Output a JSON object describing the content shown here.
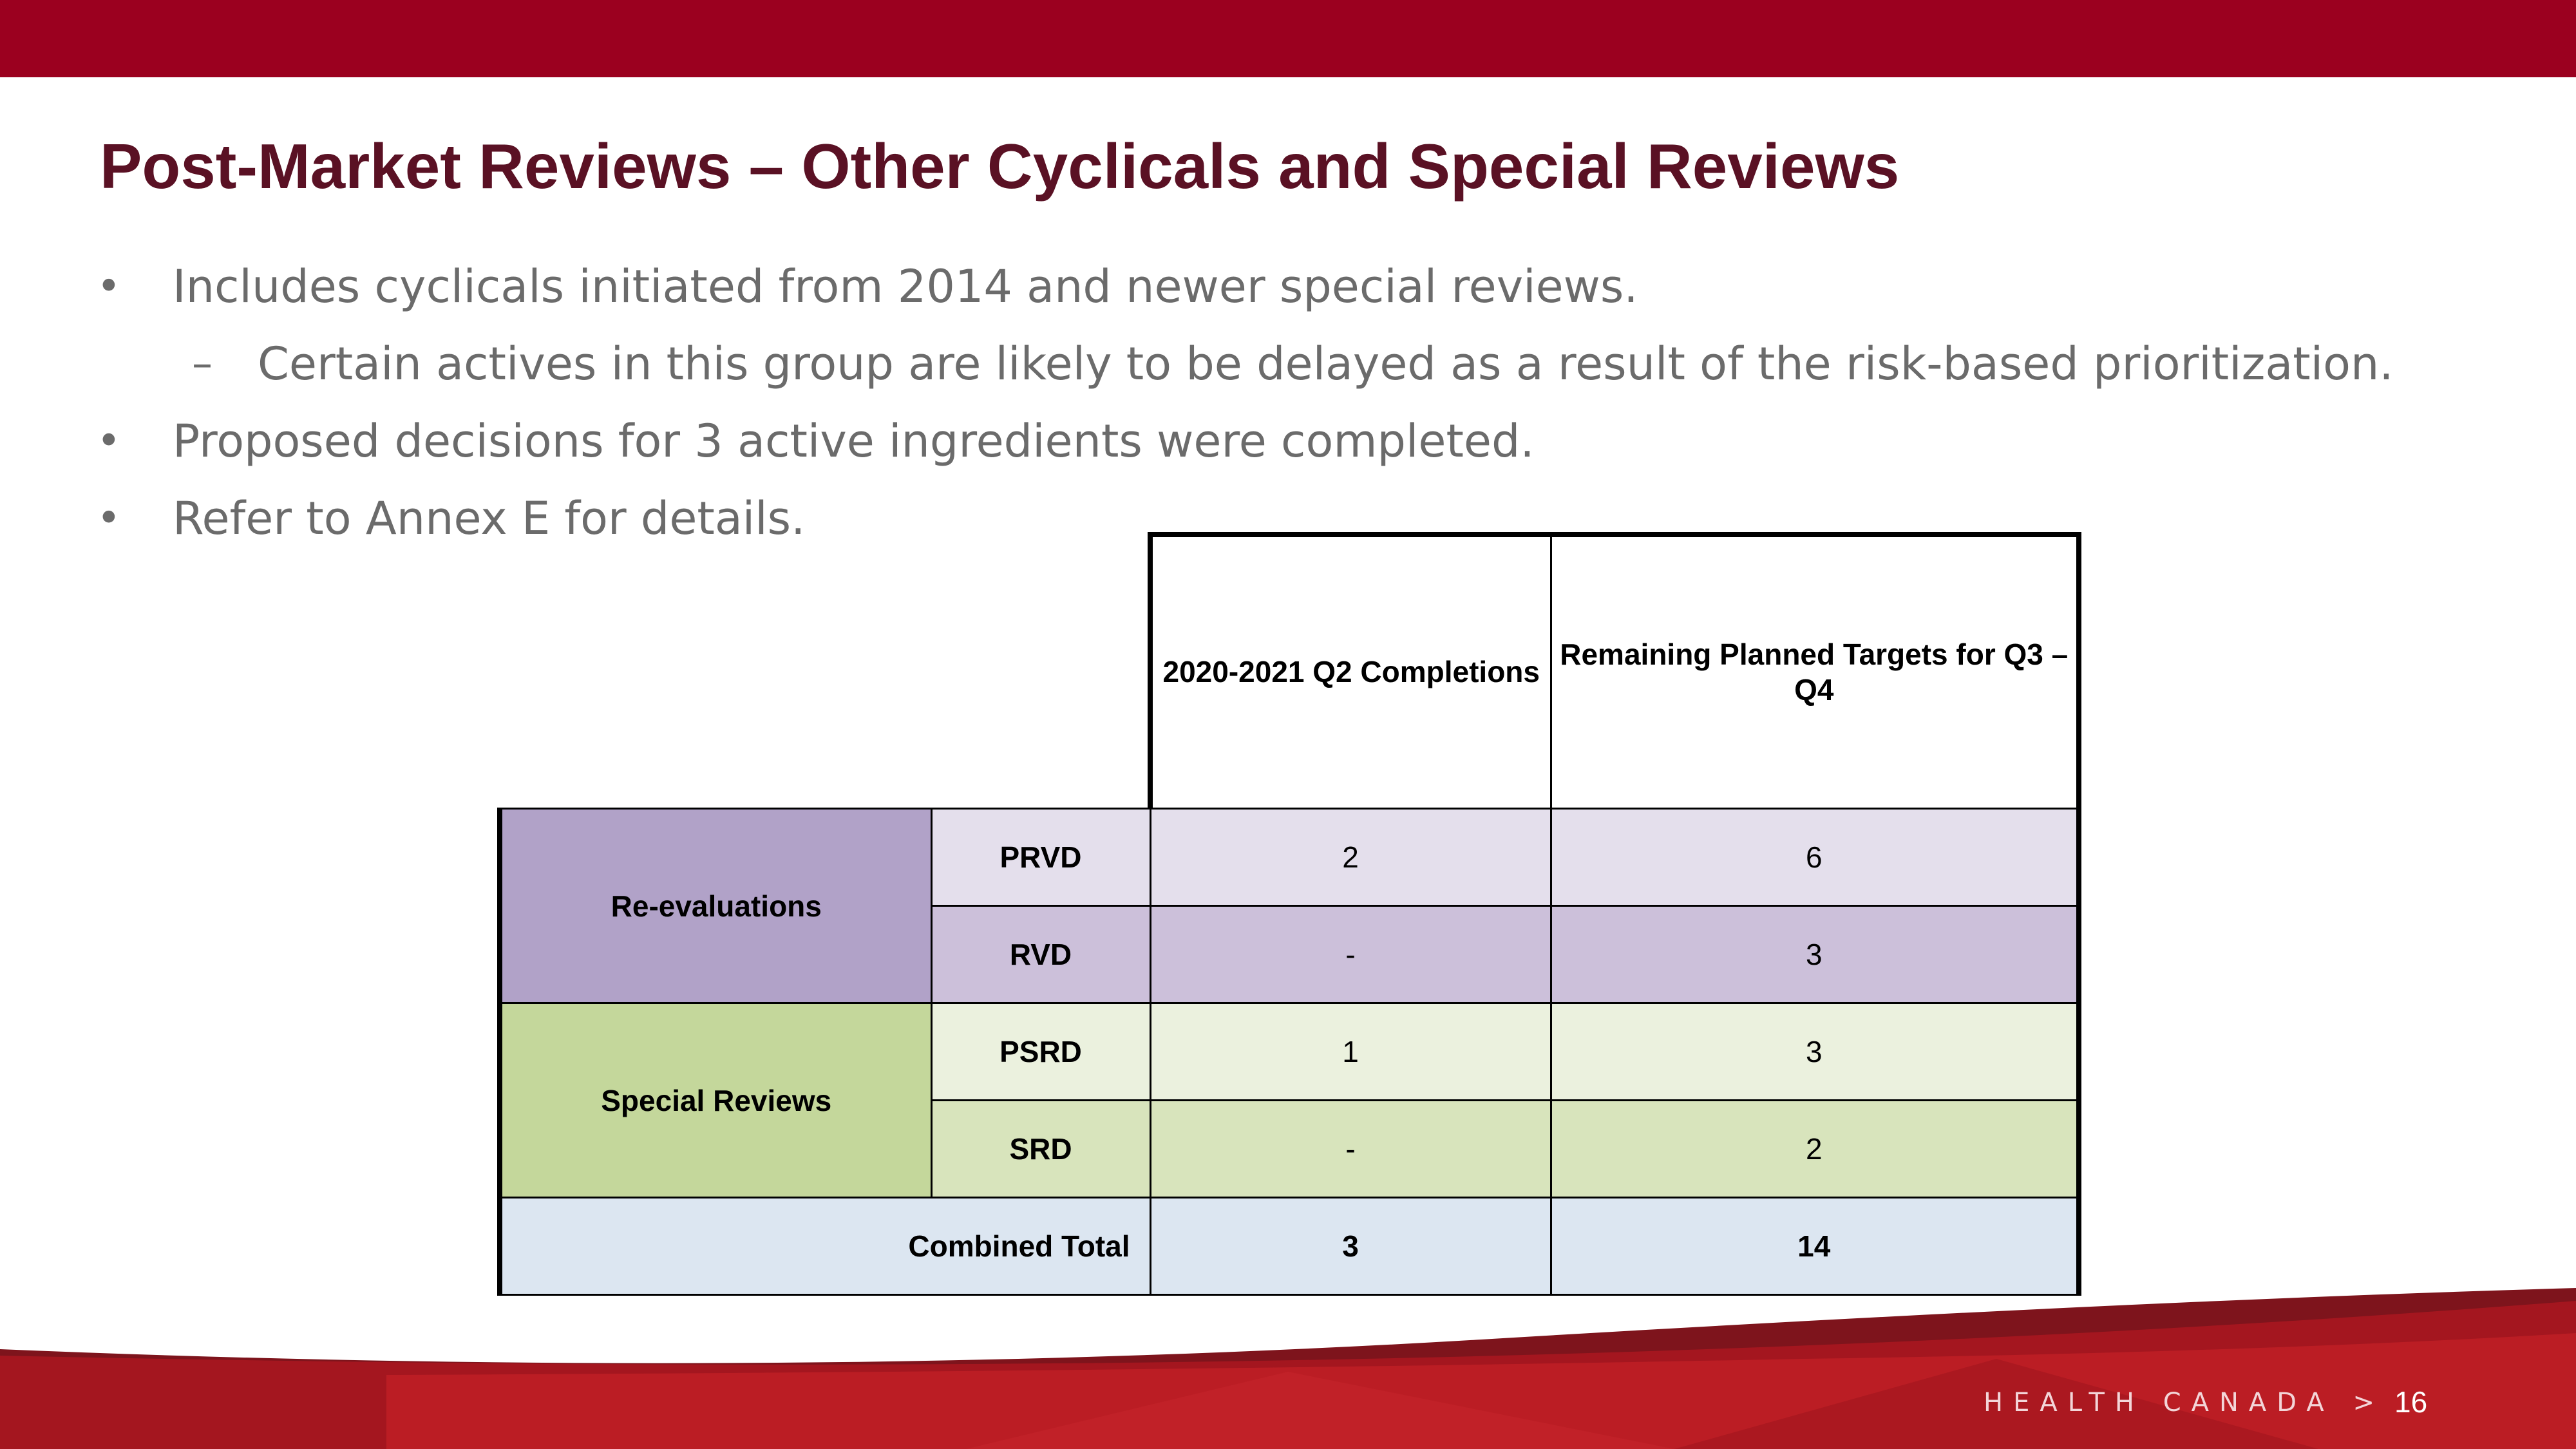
{
  "slide": {
    "title": "Post-Market Reviews – Other Cyclicals and Special Reviews",
    "bullets": [
      {
        "mark": "•",
        "text": "Includes cyclicals initiated from 2014 and newer special reviews."
      },
      {
        "mark": "–",
        "text": "Certain actives in this group are likely to be delayed as a result of the risk-based prioritization."
      },
      {
        "mark": "•",
        "text": "Proposed decisions for 3 active ingredients were completed."
      },
      {
        "mark": "•",
        "text": "Refer to Annex E for details."
      }
    ],
    "footer": "HEALTH CANADA >",
    "page_number": "16"
  },
  "table": {
    "headers": [
      "2020-2021 Q2 Completions",
      "Remaining Planned Targets for Q3 – Q4"
    ],
    "groups": [
      {
        "name": "Re-evaluations",
        "rows": [
          {
            "label": "PRVD",
            "q2": "2",
            "remaining": "6"
          },
          {
            "label": "RVD",
            "q2": "-",
            "remaining": "3"
          }
        ]
      },
      {
        "name": "Special Reviews",
        "rows": [
          {
            "label": "PSRD",
            "q2": "1",
            "remaining": "3"
          },
          {
            "label": "SRD",
            "q2": "-",
            "remaining": "2"
          }
        ]
      }
    ],
    "total": {
      "label": "Combined Total",
      "q2": "3",
      "remaining": "14"
    }
  },
  "colors": {
    "brand_red": "#9b001f",
    "title": "#5a1124",
    "reevaluations": "#b1a2c8",
    "special_reviews": "#c4d79b",
    "total_row": "#dce6f1"
  }
}
